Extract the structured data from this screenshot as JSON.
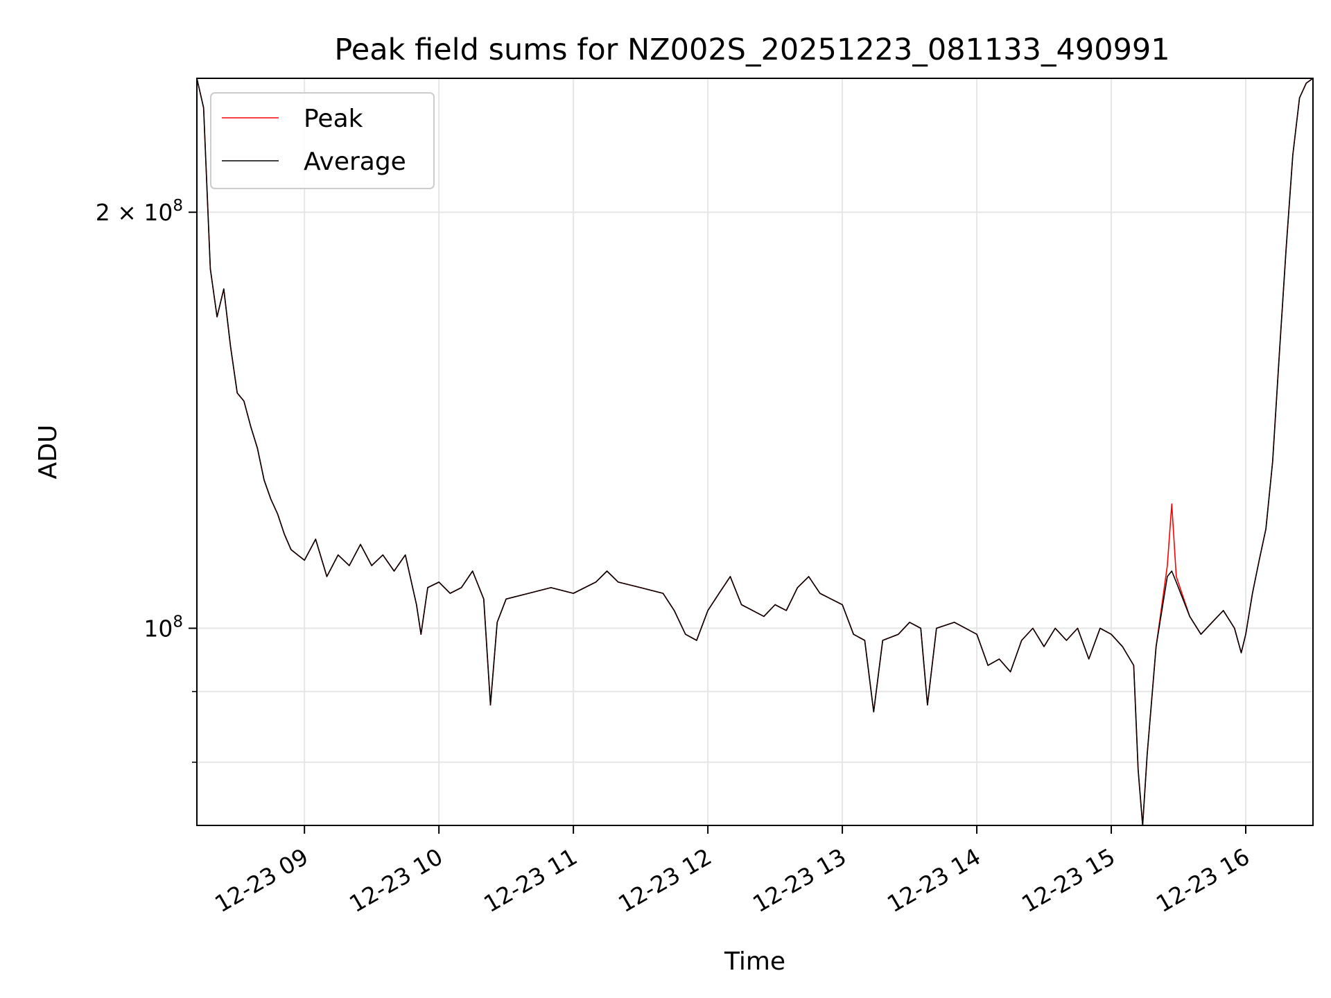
{
  "chart_data": {
    "type": "line",
    "title": "Peak field sums for NZ002S_20251223_081133_490991",
    "xlabel": "Time",
    "ylabel": "ADU",
    "yscale": "log",
    "ylim": [
      72000000,
      250000000
    ],
    "xlim": [
      "2025-12-23 08:12",
      "2025-12-23 16:30"
    ],
    "grid": true,
    "legend_position": "upper-left",
    "x_ticks": [
      {
        "value": "2025-12-23 09:00",
        "label": "12-23 09"
      },
      {
        "value": "2025-12-23 10:00",
        "label": "12-23 10"
      },
      {
        "value": "2025-12-23 11:00",
        "label": "12-23 11"
      },
      {
        "value": "2025-12-23 12:00",
        "label": "12-23 12"
      },
      {
        "value": "2025-12-23 13:00",
        "label": "12-23 13"
      },
      {
        "value": "2025-12-23 14:00",
        "label": "12-23 14"
      },
      {
        "value": "2025-12-23 15:00",
        "label": "12-23 15"
      },
      {
        "value": "2025-12-23 16:00",
        "label": "12-23 16"
      }
    ],
    "y_major_ticks": [
      {
        "value": 100000000,
        "base": "10",
        "exp": "8",
        "prefix": ""
      },
      {
        "value": 200000000,
        "base": "10",
        "exp": "8",
        "prefix": "2 × "
      }
    ],
    "y_minor_ticks": [
      80000000,
      90000000
    ],
    "series": [
      {
        "name": "Peak",
        "color": "#ff0000",
        "points": [
          [
            "2025-12-23 08:12",
            250000000
          ],
          [
            "2025-12-23 08:15",
            238000000
          ],
          [
            "2025-12-23 08:18",
            182000000
          ],
          [
            "2025-12-23 08:21",
            168000000
          ],
          [
            "2025-12-23 08:24",
            176000000
          ],
          [
            "2025-12-23 08:27",
            160000000
          ],
          [
            "2025-12-23 08:30",
            148000000
          ],
          [
            "2025-12-23 08:33",
            146000000
          ],
          [
            "2025-12-23 08:36",
            140000000
          ],
          [
            "2025-12-23 08:39",
            135000000
          ],
          [
            "2025-12-23 08:42",
            128000000
          ],
          [
            "2025-12-23 08:45",
            124000000
          ],
          [
            "2025-12-23 08:48",
            121000000
          ],
          [
            "2025-12-23 08:51",
            117000000
          ],
          [
            "2025-12-23 08:54",
            114000000
          ],
          [
            "2025-12-23 08:57",
            113000000
          ],
          [
            "2025-12-23 09:00",
            112000000
          ],
          [
            "2025-12-23 09:05",
            116000000
          ],
          [
            "2025-12-23 09:10",
            109000000
          ],
          [
            "2025-12-23 09:15",
            113000000
          ],
          [
            "2025-12-23 09:20",
            111000000
          ],
          [
            "2025-12-23 09:25",
            115000000
          ],
          [
            "2025-12-23 09:30",
            111000000
          ],
          [
            "2025-12-23 09:35",
            113000000
          ],
          [
            "2025-12-23 09:40",
            110000000
          ],
          [
            "2025-12-23 09:45",
            113000000
          ],
          [
            "2025-12-23 09:50",
            104000000
          ],
          [
            "2025-12-23 09:52",
            99000000
          ],
          [
            "2025-12-23 09:55",
            107000000
          ],
          [
            "2025-12-23 10:00",
            108000000
          ],
          [
            "2025-12-23 10:05",
            106000000
          ],
          [
            "2025-12-23 10:10",
            107000000
          ],
          [
            "2025-12-23 10:15",
            110000000
          ],
          [
            "2025-12-23 10:20",
            105000000
          ],
          [
            "2025-12-23 10:23",
            88000000
          ],
          [
            "2025-12-23 10:26",
            101000000
          ],
          [
            "2025-12-23 10:30",
            105000000
          ],
          [
            "2025-12-23 10:40",
            106000000
          ],
          [
            "2025-12-23 10:50",
            107000000
          ],
          [
            "2025-12-23 11:00",
            106000000
          ],
          [
            "2025-12-23 11:10",
            108000000
          ],
          [
            "2025-12-23 11:15",
            110000000
          ],
          [
            "2025-12-23 11:20",
            108000000
          ],
          [
            "2025-12-23 11:30",
            107000000
          ],
          [
            "2025-12-23 11:40",
            106000000
          ],
          [
            "2025-12-23 11:45",
            103000000
          ],
          [
            "2025-12-23 11:50",
            99000000
          ],
          [
            "2025-12-23 11:55",
            98000000
          ],
          [
            "2025-12-23 12:00",
            103000000
          ],
          [
            "2025-12-23 12:05",
            106000000
          ],
          [
            "2025-12-23 12:10",
            109000000
          ],
          [
            "2025-12-23 12:15",
            104000000
          ],
          [
            "2025-12-23 12:20",
            103000000
          ],
          [
            "2025-12-23 12:25",
            102000000
          ],
          [
            "2025-12-23 12:30",
            104000000
          ],
          [
            "2025-12-23 12:35",
            103000000
          ],
          [
            "2025-12-23 12:40",
            107000000
          ],
          [
            "2025-12-23 12:45",
            109000000
          ],
          [
            "2025-12-23 12:50",
            106000000
          ],
          [
            "2025-12-23 12:55",
            105000000
          ],
          [
            "2025-12-23 13:00",
            104000000
          ],
          [
            "2025-12-23 13:05",
            99000000
          ],
          [
            "2025-12-23 13:10",
            98000000
          ],
          [
            "2025-12-23 13:14",
            87000000
          ],
          [
            "2025-12-23 13:18",
            98000000
          ],
          [
            "2025-12-23 13:25",
            99000000
          ],
          [
            "2025-12-23 13:30",
            101000000
          ],
          [
            "2025-12-23 13:35",
            100000000
          ],
          [
            "2025-12-23 13:38",
            88000000
          ],
          [
            "2025-12-23 13:42",
            100000000
          ],
          [
            "2025-12-23 13:50",
            101000000
          ],
          [
            "2025-12-23 14:00",
            99000000
          ],
          [
            "2025-12-23 14:05",
            94000000
          ],
          [
            "2025-12-23 14:10",
            95000000
          ],
          [
            "2025-12-23 14:15",
            93000000
          ],
          [
            "2025-12-23 14:20",
            98000000
          ],
          [
            "2025-12-23 14:25",
            100000000
          ],
          [
            "2025-12-23 14:30",
            97000000
          ],
          [
            "2025-12-23 14:35",
            100000000
          ],
          [
            "2025-12-23 14:40",
            98000000
          ],
          [
            "2025-12-23 14:45",
            100000000
          ],
          [
            "2025-12-23 14:50",
            95000000
          ],
          [
            "2025-12-23 14:55",
            100000000
          ],
          [
            "2025-12-23 15:00",
            99000000
          ],
          [
            "2025-12-23 15:05",
            97000000
          ],
          [
            "2025-12-23 15:10",
            94000000
          ],
          [
            "2025-12-23 15:12",
            79000000
          ],
          [
            "2025-12-23 15:14",
            72000000
          ],
          [
            "2025-12-23 15:16",
            81000000
          ],
          [
            "2025-12-23 15:20",
            97000000
          ],
          [
            "2025-12-23 15:25",
            111000000
          ],
          [
            "2025-12-23 15:27",
            123000000
          ],
          [
            "2025-12-23 15:29",
            109000000
          ],
          [
            "2025-12-23 15:35",
            102000000
          ],
          [
            "2025-12-23 15:40",
            99000000
          ],
          [
            "2025-12-23 15:45",
            101000000
          ],
          [
            "2025-12-23 15:50",
            103000000
          ],
          [
            "2025-12-23 15:55",
            100000000
          ],
          [
            "2025-12-23 15:58",
            96000000
          ],
          [
            "2025-12-23 16:00",
            99000000
          ],
          [
            "2025-12-23 16:03",
            106000000
          ],
          [
            "2025-12-23 16:06",
            112000000
          ],
          [
            "2025-12-23 16:09",
            118000000
          ],
          [
            "2025-12-23 16:12",
            132000000
          ],
          [
            "2025-12-23 16:15",
            158000000
          ],
          [
            "2025-12-23 16:18",
            188000000
          ],
          [
            "2025-12-23 16:21",
            220000000
          ],
          [
            "2025-12-23 16:24",
            242000000
          ],
          [
            "2025-12-23 16:27",
            248000000
          ],
          [
            "2025-12-23 16:30",
            250000000
          ]
        ]
      },
      {
        "name": "Average",
        "color": "#000000",
        "points": [
          [
            "2025-12-23 08:12",
            250000000
          ],
          [
            "2025-12-23 08:15",
            238000000
          ],
          [
            "2025-12-23 08:18",
            182000000
          ],
          [
            "2025-12-23 08:21",
            168000000
          ],
          [
            "2025-12-23 08:24",
            176000000
          ],
          [
            "2025-12-23 08:27",
            160000000
          ],
          [
            "2025-12-23 08:30",
            148000000
          ],
          [
            "2025-12-23 08:33",
            146000000
          ],
          [
            "2025-12-23 08:36",
            140000000
          ],
          [
            "2025-12-23 08:39",
            135000000
          ],
          [
            "2025-12-23 08:42",
            128000000
          ],
          [
            "2025-12-23 08:45",
            124000000
          ],
          [
            "2025-12-23 08:48",
            121000000
          ],
          [
            "2025-12-23 08:51",
            117000000
          ],
          [
            "2025-12-23 08:54",
            114000000
          ],
          [
            "2025-12-23 08:57",
            113000000
          ],
          [
            "2025-12-23 09:00",
            112000000
          ],
          [
            "2025-12-23 09:05",
            116000000
          ],
          [
            "2025-12-23 09:10",
            109000000
          ],
          [
            "2025-12-23 09:15",
            113000000
          ],
          [
            "2025-12-23 09:20",
            111000000
          ],
          [
            "2025-12-23 09:25",
            115000000
          ],
          [
            "2025-12-23 09:30",
            111000000
          ],
          [
            "2025-12-23 09:35",
            113000000
          ],
          [
            "2025-12-23 09:40",
            110000000
          ],
          [
            "2025-12-23 09:45",
            113000000
          ],
          [
            "2025-12-23 09:50",
            104000000
          ],
          [
            "2025-12-23 09:52",
            99000000
          ],
          [
            "2025-12-23 09:55",
            107000000
          ],
          [
            "2025-12-23 10:00",
            108000000
          ],
          [
            "2025-12-23 10:05",
            106000000
          ],
          [
            "2025-12-23 10:10",
            107000000
          ],
          [
            "2025-12-23 10:15",
            110000000
          ],
          [
            "2025-12-23 10:20",
            105000000
          ],
          [
            "2025-12-23 10:23",
            88000000
          ],
          [
            "2025-12-23 10:26",
            101000000
          ],
          [
            "2025-12-23 10:30",
            105000000
          ],
          [
            "2025-12-23 10:40",
            106000000
          ],
          [
            "2025-12-23 10:50",
            107000000
          ],
          [
            "2025-12-23 11:00",
            106000000
          ],
          [
            "2025-12-23 11:10",
            108000000
          ],
          [
            "2025-12-23 11:15",
            110000000
          ],
          [
            "2025-12-23 11:20",
            108000000
          ],
          [
            "2025-12-23 11:30",
            107000000
          ],
          [
            "2025-12-23 11:40",
            106000000
          ],
          [
            "2025-12-23 11:45",
            103000000
          ],
          [
            "2025-12-23 11:50",
            99000000
          ],
          [
            "2025-12-23 11:55",
            98000000
          ],
          [
            "2025-12-23 12:00",
            103000000
          ],
          [
            "2025-12-23 12:05",
            106000000
          ],
          [
            "2025-12-23 12:10",
            109000000
          ],
          [
            "2025-12-23 12:15",
            104000000
          ],
          [
            "2025-12-23 12:20",
            103000000
          ],
          [
            "2025-12-23 12:25",
            102000000
          ],
          [
            "2025-12-23 12:30",
            104000000
          ],
          [
            "2025-12-23 12:35",
            103000000
          ],
          [
            "2025-12-23 12:40",
            107000000
          ],
          [
            "2025-12-23 12:45",
            109000000
          ],
          [
            "2025-12-23 12:50",
            106000000
          ],
          [
            "2025-12-23 12:55",
            105000000
          ],
          [
            "2025-12-23 13:00",
            104000000
          ],
          [
            "2025-12-23 13:05",
            99000000
          ],
          [
            "2025-12-23 13:10",
            98000000
          ],
          [
            "2025-12-23 13:14",
            87000000
          ],
          [
            "2025-12-23 13:18",
            98000000
          ],
          [
            "2025-12-23 13:25",
            99000000
          ],
          [
            "2025-12-23 13:30",
            101000000
          ],
          [
            "2025-12-23 13:35",
            100000000
          ],
          [
            "2025-12-23 13:38",
            88000000
          ],
          [
            "2025-12-23 13:42",
            100000000
          ],
          [
            "2025-12-23 13:50",
            101000000
          ],
          [
            "2025-12-23 14:00",
            99000000
          ],
          [
            "2025-12-23 14:05",
            94000000
          ],
          [
            "2025-12-23 14:10",
            95000000
          ],
          [
            "2025-12-23 14:15",
            93000000
          ],
          [
            "2025-12-23 14:20",
            98000000
          ],
          [
            "2025-12-23 14:25",
            100000000
          ],
          [
            "2025-12-23 14:30",
            97000000
          ],
          [
            "2025-12-23 14:35",
            100000000
          ],
          [
            "2025-12-23 14:40",
            98000000
          ],
          [
            "2025-12-23 14:45",
            100000000
          ],
          [
            "2025-12-23 14:50",
            95000000
          ],
          [
            "2025-12-23 14:55",
            100000000
          ],
          [
            "2025-12-23 15:00",
            99000000
          ],
          [
            "2025-12-23 15:05",
            97000000
          ],
          [
            "2025-12-23 15:10",
            94000000
          ],
          [
            "2025-12-23 15:12",
            79000000
          ],
          [
            "2025-12-23 15:14",
            72000000
          ],
          [
            "2025-12-23 15:16",
            81000000
          ],
          [
            "2025-12-23 15:20",
            97000000
          ],
          [
            "2025-12-23 15:25",
            109000000
          ],
          [
            "2025-12-23 15:27",
            110000000
          ],
          [
            "2025-12-23 15:29",
            108000000
          ],
          [
            "2025-12-23 15:35",
            102000000
          ],
          [
            "2025-12-23 15:40",
            99000000
          ],
          [
            "2025-12-23 15:45",
            101000000
          ],
          [
            "2025-12-23 15:50",
            103000000
          ],
          [
            "2025-12-23 15:55",
            100000000
          ],
          [
            "2025-12-23 15:58",
            96000000
          ],
          [
            "2025-12-23 16:00",
            99000000
          ],
          [
            "2025-12-23 16:03",
            106000000
          ],
          [
            "2025-12-23 16:06",
            112000000
          ],
          [
            "2025-12-23 16:09",
            118000000
          ],
          [
            "2025-12-23 16:12",
            132000000
          ],
          [
            "2025-12-23 16:15",
            158000000
          ],
          [
            "2025-12-23 16:18",
            188000000
          ],
          [
            "2025-12-23 16:21",
            220000000
          ],
          [
            "2025-12-23 16:24",
            242000000
          ],
          [
            "2025-12-23 16:27",
            248000000
          ],
          [
            "2025-12-23 16:30",
            250000000
          ]
        ]
      }
    ]
  }
}
